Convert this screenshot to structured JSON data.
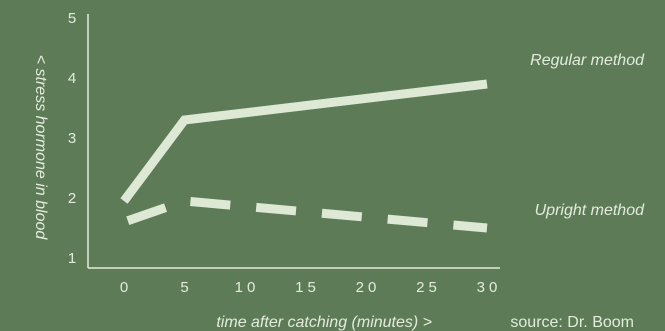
{
  "chart_data": {
    "type": "line",
    "xlabel": "time after catching (minutes) >",
    "ylabel": "< stress hormone in blood",
    "source": "source: Dr. Boom",
    "x_ticks": [
      0,
      5,
      10,
      15,
      20,
      25,
      30
    ],
    "x_tick_labels": [
      "0",
      "5",
      "10",
      "15",
      "20",
      "25",
      "30"
    ],
    "y_ticks": [
      1,
      2,
      3,
      4,
      5
    ],
    "y_tick_labels": [
      "1",
      "2",
      "3",
      "4",
      "5"
    ],
    "xlim": [
      -1.5,
      31.5
    ],
    "ylim": [
      1,
      5
    ],
    "grid": false,
    "series": [
      {
        "name": "Regular method",
        "style": "solid",
        "color": "#dde9d5",
        "x": [
          0,
          5,
          30
        ],
        "y": [
          1.95,
          3.3,
          3.9
        ]
      },
      {
        "name": "Upright method",
        "style": "dashed",
        "color": "#dde9d5",
        "x": [
          0,
          5,
          30
        ],
        "y": [
          1.6,
          1.95,
          1.5
        ]
      }
    ]
  },
  "colors": {
    "background": "#5e7b58",
    "axis": "#e3ecdc",
    "series": "#dde9d5"
  }
}
